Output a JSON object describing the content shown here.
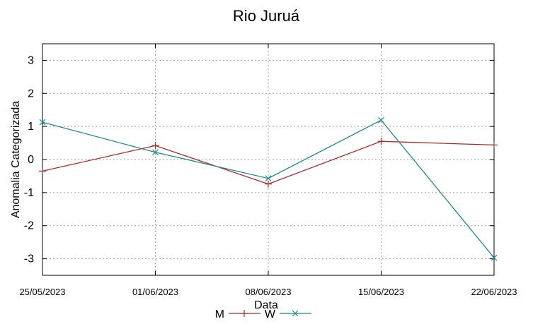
{
  "chart_data": {
    "type": "line",
    "title": "Rio Juruá",
    "xlabel": "Data",
    "ylabel": "Anomalia Categorizada",
    "categories": [
      "25/05/2023",
      "01/06/2023",
      "08/06/2023",
      "15/06/2023",
      "22/06/2023"
    ],
    "ylim": [
      -3.5,
      3.5
    ],
    "yticks": [
      3,
      2,
      1,
      0,
      -1,
      -2,
      -3
    ],
    "grid": true,
    "legend": "bottom-center",
    "series": [
      {
        "name": "M",
        "values": [
          -0.35,
          0.42,
          -0.74,
          0.55,
          0.44
        ],
        "color": "#a52a2a",
        "marker": "plus"
      },
      {
        "name": "W",
        "values": [
          1.13,
          0.22,
          -0.57,
          1.19,
          -2.97
        ],
        "color": "#1f8a8a",
        "marker": "cross"
      }
    ]
  }
}
